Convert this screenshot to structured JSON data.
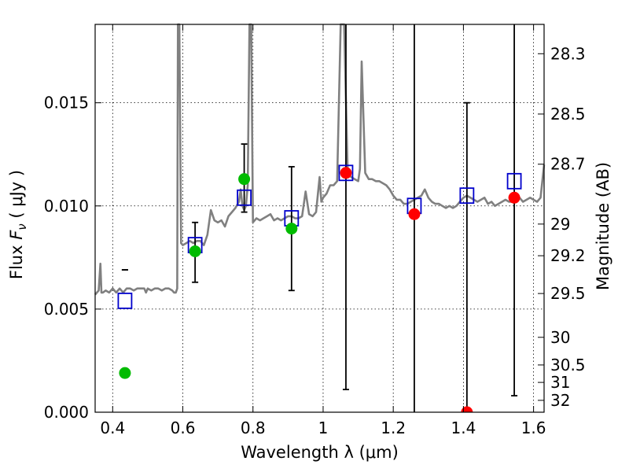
{
  "chart_data": {
    "type": "scatter",
    "title": "",
    "xlabel": "Wavelength  λ (μm)",
    "ylabel": "Flux  F_ν  ( μJy )",
    "ylabel_parts": {
      "pre": "Flux  ",
      "var": "F",
      "sub": "ν",
      "post": "  ( μJy )"
    },
    "ylabel_right": "Magnitude (AB)",
    "xlim": [
      0.35,
      1.63
    ],
    "ylim": [
      0.0,
      0.0188
    ],
    "grid": true,
    "legend": "none",
    "colors": {
      "spectrum": "#808080",
      "observed": "#00bb00",
      "upper": "#ff0000",
      "model": "#0000cc",
      "errorbar": "#000000"
    },
    "x_ticks": [
      {
        "value": 0.4,
        "label": "0.4"
      },
      {
        "value": 0.6,
        "label": "0.6"
      },
      {
        "value": 0.8,
        "label": "0.8"
      },
      {
        "value": 1.0,
        "label": "1"
      },
      {
        "value": 1.2,
        "label": "1.2"
      },
      {
        "value": 1.4,
        "label": "1.4"
      },
      {
        "value": 1.6,
        "label": "1.6"
      }
    ],
    "y_ticks": [
      {
        "value": 0.0,
        "label": "0.000"
      },
      {
        "value": 0.005,
        "label": "0.005"
      },
      {
        "value": 0.01,
        "label": "0.010"
      },
      {
        "value": 0.015,
        "label": "0.015"
      }
    ],
    "y2_ticks": [
      {
        "value": 28.3,
        "label": "28.3"
      },
      {
        "value": 28.5,
        "label": "28.5"
      },
      {
        "value": 28.7,
        "label": "28.7"
      },
      {
        "value": 29.0,
        "label": "29"
      },
      {
        "value": 29.2,
        "label": "29.2"
      },
      {
        "value": 29.5,
        "label": "29.5"
      },
      {
        "value": 30.0,
        "label": "30"
      },
      {
        "value": 30.5,
        "label": "30.5"
      },
      {
        "value": 31.0,
        "label": "31"
      },
      {
        "value": 32.0,
        "label": "32"
      }
    ],
    "spectrum": {
      "name": "",
      "x": [
        0.35,
        0.36,
        0.365,
        0.368,
        0.372,
        0.38,
        0.39,
        0.4,
        0.41,
        0.42,
        0.43,
        0.44,
        0.45,
        0.46,
        0.47,
        0.48,
        0.49,
        0.495,
        0.5,
        0.51,
        0.52,
        0.53,
        0.54,
        0.55,
        0.56,
        0.57,
        0.575,
        0.58,
        0.584,
        0.586,
        0.59,
        0.595,
        0.6,
        0.61,
        0.62,
        0.63,
        0.64,
        0.65,
        0.66,
        0.67,
        0.68,
        0.69,
        0.7,
        0.71,
        0.72,
        0.73,
        0.74,
        0.75,
        0.76,
        0.765,
        0.77,
        0.775,
        0.78,
        0.785,
        0.79,
        0.795,
        0.8,
        0.81,
        0.82,
        0.83,
        0.84,
        0.85,
        0.86,
        0.87,
        0.88,
        0.89,
        0.9,
        0.91,
        0.92,
        0.93,
        0.94,
        0.95,
        0.96,
        0.97,
        0.98,
        0.99,
        0.995,
        1.0,
        1.01,
        1.02,
        1.03,
        1.04,
        1.05,
        1.055,
        1.06,
        1.07,
        1.08,
        1.09,
        1.1,
        1.105,
        1.11,
        1.12,
        1.13,
        1.14,
        1.15,
        1.16,
        1.17,
        1.18,
        1.19,
        1.2,
        1.21,
        1.22,
        1.23,
        1.24,
        1.25,
        1.26,
        1.27,
        1.28,
        1.29,
        1.3,
        1.31,
        1.32,
        1.33,
        1.34,
        1.35,
        1.36,
        1.37,
        1.38,
        1.39,
        1.4,
        1.41,
        1.42,
        1.43,
        1.44,
        1.45,
        1.46,
        1.47,
        1.48,
        1.49,
        1.5,
        1.51,
        1.52,
        1.53,
        1.54,
        1.55,
        1.56,
        1.57,
        1.58,
        1.59,
        1.6,
        1.61,
        1.62,
        1.63
      ],
      "y": [
        0.0057,
        0.0059,
        0.0072,
        0.0058,
        0.0058,
        0.0059,
        0.0058,
        0.006,
        0.0058,
        0.006,
        0.0058,
        0.006,
        0.006,
        0.0059,
        0.006,
        0.006,
        0.006,
        0.0058,
        0.006,
        0.0059,
        0.006,
        0.006,
        0.0059,
        0.006,
        0.006,
        0.0059,
        0.0058,
        0.0058,
        0.006,
        0.019,
        0.019,
        0.0082,
        0.0081,
        0.0082,
        0.0083,
        0.0082,
        0.0083,
        0.0083,
        0.0081,
        0.0086,
        0.0098,
        0.0093,
        0.0092,
        0.0093,
        0.009,
        0.0095,
        0.0097,
        0.0099,
        0.0102,
        0.0108,
        0.01,
        0.0098,
        0.01,
        0.011,
        0.019,
        0.019,
        0.0092,
        0.0094,
        0.0093,
        0.0094,
        0.0095,
        0.0096,
        0.0093,
        0.0094,
        0.0093,
        0.0094,
        0.0095,
        0.0095,
        0.0094,
        0.0094,
        0.0095,
        0.0107,
        0.0096,
        0.0095,
        0.0097,
        0.0114,
        0.0102,
        0.0104,
        0.0106,
        0.011,
        0.011,
        0.0112,
        0.019,
        0.019,
        0.019,
        0.0116,
        0.0114,
        0.0113,
        0.0112,
        0.0118,
        0.017,
        0.0116,
        0.0113,
        0.0113,
        0.0112,
        0.0112,
        0.0111,
        0.011,
        0.0108,
        0.0105,
        0.0103,
        0.0103,
        0.0101,
        0.0101,
        0.0102,
        0.0103,
        0.0104,
        0.0105,
        0.0108,
        0.0104,
        0.0102,
        0.0101,
        0.0101,
        0.01,
        0.0099,
        0.01,
        0.0099,
        0.01,
        0.0102,
        0.0104,
        0.0105,
        0.0104,
        0.0103,
        0.0102,
        0.0103,
        0.0104,
        0.0101,
        0.0102,
        0.01,
        0.0101,
        0.0102,
        0.0103,
        0.0102,
        0.0102,
        0.0103,
        0.0104,
        0.0102,
        0.0103,
        0.0104,
        0.0103,
        0.0102,
        0.0104,
        0.012
      ]
    },
    "observed": {
      "name": "",
      "x": [
        0.435,
        0.635,
        0.775,
        0.91
      ],
      "y": [
        0.0019,
        0.0078,
        0.0113,
        0.0089
      ],
      "yerr_low": [
        0.0069,
        0.0063,
        0.0097,
        0.0059
      ],
      "yerr_high": [
        0.0069,
        0.0092,
        0.013,
        0.0119
      ]
    },
    "upper_limits": {
      "name": "",
      "x": [
        1.065,
        1.26,
        1.41,
        1.545
      ],
      "y": [
        0.0116,
        0.0096,
        0.0,
        0.0104
      ],
      "yerr_low": [
        0.0011,
        0.0,
        0.0,
        0.0008
      ],
      "yerr_high": [
        0.0188,
        0.0188,
        0.015,
        0.0188
      ]
    },
    "model_points": {
      "name": "",
      "x": [
        0.435,
        0.635,
        0.775,
        0.91,
        1.065,
        1.26,
        1.41,
        1.545
      ],
      "y": [
        0.0054,
        0.0081,
        0.0104,
        0.0094,
        0.0116,
        0.01,
        0.0105,
        0.0112
      ]
    }
  }
}
